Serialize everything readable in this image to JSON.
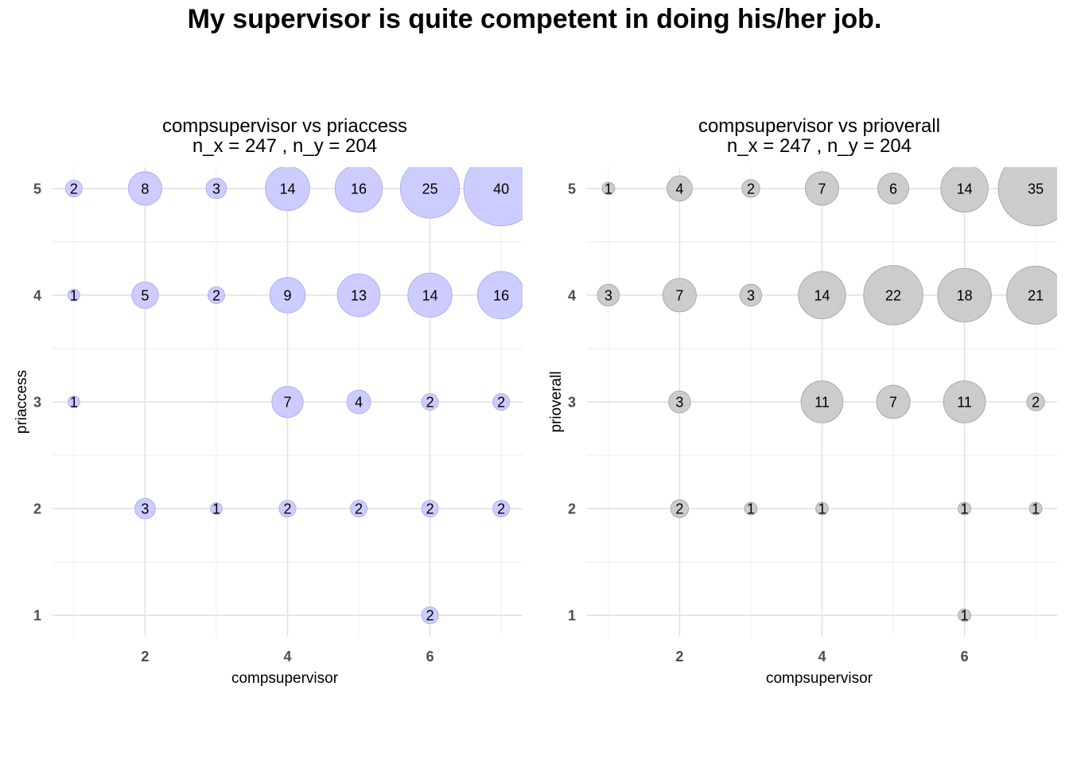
{
  "title": "My supervisor is quite competent in doing his/her job.",
  "chart_data": [
    {
      "type": "scatter",
      "subtitle": "compsupervisor vs priaccess",
      "subtitle2": "n_x = 247 , n_y = 204",
      "xlabel": "compsupervisor",
      "ylabel": "priaccess",
      "xlim": [
        0.7,
        7.3
      ],
      "ylim": [
        0.8,
        5.2
      ],
      "xticks": [
        2,
        4,
        6
      ],
      "yticks": [
        1,
        2,
        3,
        4,
        5
      ],
      "fill_color": "#ccccff",
      "stroke_color": "#b0b0ee",
      "points": [
        {
          "x": 1,
          "y": 5,
          "n": 2
        },
        {
          "x": 2,
          "y": 5,
          "n": 8
        },
        {
          "x": 3,
          "y": 5,
          "n": 3
        },
        {
          "x": 4,
          "y": 5,
          "n": 14
        },
        {
          "x": 5,
          "y": 5,
          "n": 16
        },
        {
          "x": 6,
          "y": 5,
          "n": 25
        },
        {
          "x": 7,
          "y": 5,
          "n": 40
        },
        {
          "x": 1,
          "y": 4,
          "n": 1
        },
        {
          "x": 2,
          "y": 4,
          "n": 5
        },
        {
          "x": 3,
          "y": 4,
          "n": 2
        },
        {
          "x": 4,
          "y": 4,
          "n": 9
        },
        {
          "x": 5,
          "y": 4,
          "n": 13
        },
        {
          "x": 6,
          "y": 4,
          "n": 14
        },
        {
          "x": 7,
          "y": 4,
          "n": 16
        },
        {
          "x": 1,
          "y": 3,
          "n": 1
        },
        {
          "x": 4,
          "y": 3,
          "n": 7
        },
        {
          "x": 5,
          "y": 3,
          "n": 4
        },
        {
          "x": 6,
          "y": 3,
          "n": 2
        },
        {
          "x": 7,
          "y": 3,
          "n": 2
        },
        {
          "x": 2,
          "y": 2,
          "n": 3
        },
        {
          "x": 3,
          "y": 2,
          "n": 1
        },
        {
          "x": 4,
          "y": 2,
          "n": 2
        },
        {
          "x": 5,
          "y": 2,
          "n": 2
        },
        {
          "x": 6,
          "y": 2,
          "n": 2
        },
        {
          "x": 7,
          "y": 2,
          "n": 2
        },
        {
          "x": 6,
          "y": 1,
          "n": 2
        }
      ]
    },
    {
      "type": "scatter",
      "subtitle": "compsupervisor vs prioverall",
      "subtitle2": "n_x = 247 , n_y = 204",
      "xlabel": "compsupervisor",
      "ylabel": "prioverall",
      "xlim": [
        0.7,
        7.3
      ],
      "ylim": [
        0.8,
        5.2
      ],
      "xticks": [
        2,
        4,
        6
      ],
      "yticks": [
        1,
        2,
        3,
        4,
        5
      ],
      "fill_color": "#cccccc",
      "stroke_color": "#aaaaaa",
      "points": [
        {
          "x": 1,
          "y": 5,
          "n": 1
        },
        {
          "x": 2,
          "y": 5,
          "n": 4
        },
        {
          "x": 3,
          "y": 5,
          "n": 2
        },
        {
          "x": 4,
          "y": 5,
          "n": 7
        },
        {
          "x": 5,
          "y": 5,
          "n": 6
        },
        {
          "x": 6,
          "y": 5,
          "n": 14
        },
        {
          "x": 7,
          "y": 5,
          "n": 35
        },
        {
          "x": 1,
          "y": 4,
          "n": 3
        },
        {
          "x": 2,
          "y": 4,
          "n": 7
        },
        {
          "x": 3,
          "y": 4,
          "n": 3
        },
        {
          "x": 4,
          "y": 4,
          "n": 14
        },
        {
          "x": 5,
          "y": 4,
          "n": 22
        },
        {
          "x": 6,
          "y": 4,
          "n": 18
        },
        {
          "x": 7,
          "y": 4,
          "n": 21
        },
        {
          "x": 2,
          "y": 3,
          "n": 3
        },
        {
          "x": 4,
          "y": 3,
          "n": 11
        },
        {
          "x": 5,
          "y": 3,
          "n": 7
        },
        {
          "x": 6,
          "y": 3,
          "n": 11
        },
        {
          "x": 7,
          "y": 3,
          "n": 2
        },
        {
          "x": 2,
          "y": 2,
          "n": 2
        },
        {
          "x": 3,
          "y": 2,
          "n": 1
        },
        {
          "x": 4,
          "y": 2,
          "n": 1
        },
        {
          "x": 6,
          "y": 2,
          "n": 1
        },
        {
          "x": 7,
          "y": 2,
          "n": 1
        },
        {
          "x": 6,
          "y": 1,
          "n": 1
        }
      ]
    }
  ]
}
